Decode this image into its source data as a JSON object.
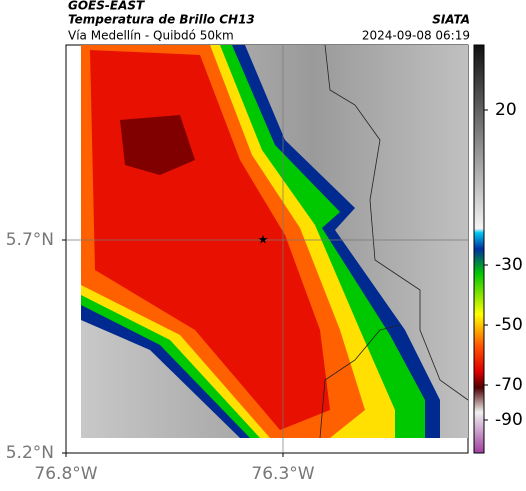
{
  "header": {
    "satellite": "GOES-EAST",
    "product": "Temperatura de Brillo CH13",
    "source": "SIATA",
    "location": "Vía Medellín - Quibdó 50km",
    "datetime": "2024-09-08 06:19"
  },
  "map": {
    "lat_ticks": [
      {
        "value": 5.7,
        "label": "5.7°N"
      },
      {
        "value": 5.2,
        "label": "5.2°N"
      }
    ],
    "lon_ticks": [
      {
        "value": -76.8,
        "label": "76.8°W"
      },
      {
        "value": -76.3,
        "label": "76.3°W"
      }
    ],
    "colorbar_ticks": [
      20,
      -30,
      -50,
      -70,
      -90
    ]
  }
}
